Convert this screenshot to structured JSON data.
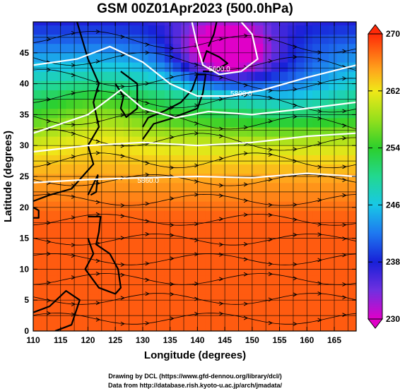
{
  "title": "GSM 00Z01Apr2023 (500.0hPa)",
  "xaxis": {
    "label": "Longitude (degrees)",
    "min": 110,
    "max": 169,
    "ticks": [
      110,
      115,
      120,
      125,
      130,
      135,
      140,
      145,
      150,
      155,
      160,
      165
    ]
  },
  "yaxis": {
    "label": "Latitude  (degrees)",
    "min": 0,
    "max": 50,
    "ticks": [
      0,
      5,
      10,
      15,
      20,
      25,
      30,
      35,
      40,
      45
    ]
  },
  "colorbar": {
    "min": 230,
    "max": 270,
    "labels": [
      270,
      262,
      254,
      246,
      238,
      230
    ],
    "colors": {
      "230": "#e000c8",
      "234": "#7030e0",
      "238": "#1820d8",
      "242": "#1e78f0",
      "246": "#18c8e6",
      "250": "#22d890",
      "254": "#2ccf2c",
      "258": "#96e01c",
      "262": "#f0e818",
      "265": "#ffa41c",
      "270": "#ff2a08"
    }
  },
  "contours": [
    {
      "label": "5800.0",
      "lon": 148.0,
      "lat": 38.0
    },
    {
      "label": "5600.0",
      "lon": 144.0,
      "lat": 42.0
    },
    {
      "label": "5860.0",
      "lon": 131.0,
      "lat": 24.0
    }
  ],
  "credits": {
    "line1": "Drawing by DCL (https://www.gfd-dennou.org/library/dcl/)",
    "line2": "Data from http://database.rish.kyoto-u.ac.jp/arch/jmadata/"
  }
}
